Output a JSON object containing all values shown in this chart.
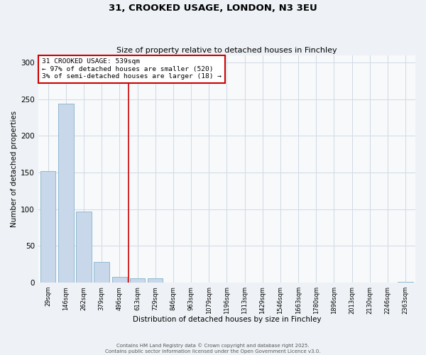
{
  "title": "31, CROOKED USAGE, LONDON, N3 3EU",
  "subtitle": "Size of property relative to detached houses in Finchley",
  "xlabel": "Distribution of detached houses by size in Finchley",
  "ylabel": "Number of detached properties",
  "bar_labels": [
    "29sqm",
    "146sqm",
    "262sqm",
    "379sqm",
    "496sqm",
    "613sqm",
    "729sqm",
    "846sqm",
    "963sqm",
    "1079sqm",
    "1196sqm",
    "1313sqm",
    "1429sqm",
    "1546sqm",
    "1663sqm",
    "1780sqm",
    "1896sqm",
    "2013sqm",
    "2130sqm",
    "2246sqm",
    "2363sqm"
  ],
  "bar_values": [
    152,
    244,
    97,
    28,
    8,
    6,
    6,
    0,
    0,
    0,
    0,
    0,
    0,
    0,
    0,
    0,
    0,
    0,
    0,
    0,
    1
  ],
  "bar_color": "#c8d8ea",
  "bar_edge_color": "#90b8d0",
  "ylim": [
    0,
    310
  ],
  "yticks": [
    0,
    50,
    100,
    150,
    200,
    250,
    300
  ],
  "vline_x": 4.5,
  "vline_color": "#cc0000",
  "annotation_title": "31 CROOKED USAGE: 539sqm",
  "annotation_line1": "← 97% of detached houses are smaller (520)",
  "annotation_line2": "3% of semi-detached houses are larger (18) →",
  "annotation_box_color": "#ffffff",
  "annotation_box_edge_color": "#cc0000",
  "footer1": "Contains HM Land Registry data © Crown copyright and database right 2025.",
  "footer2": "Contains public sector information licensed under the Open Government Licence v3.0.",
  "bg_color": "#eef2f6",
  "plot_bg_color": "#f7f9fb",
  "grid_color": "#d0dae4"
}
